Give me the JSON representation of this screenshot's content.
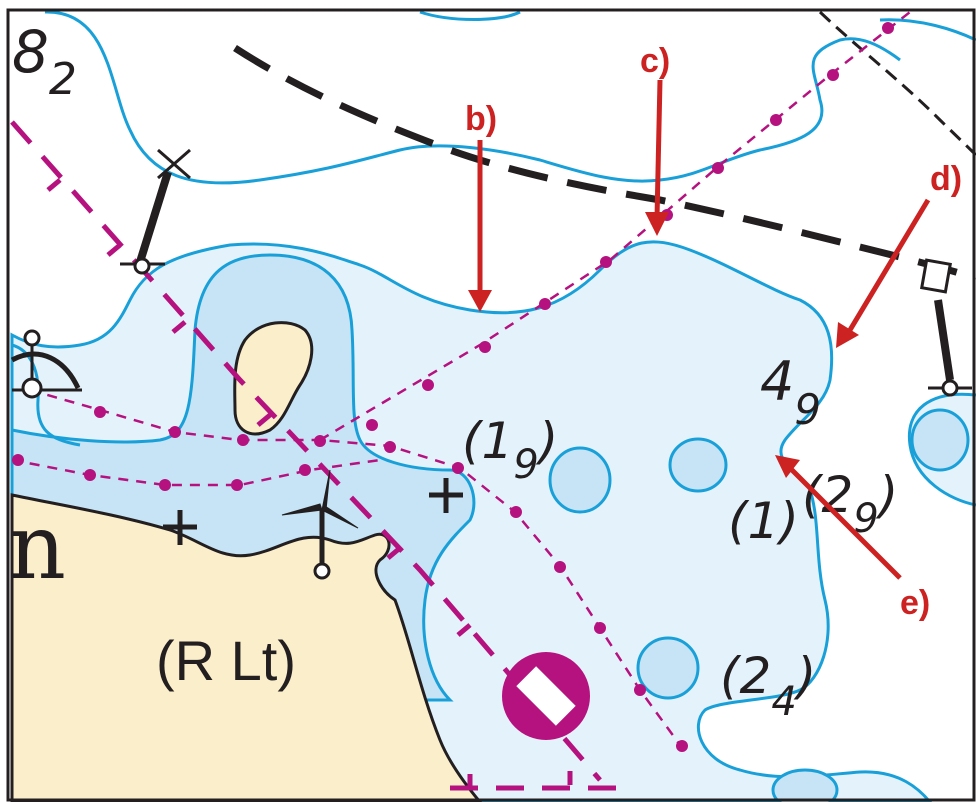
{
  "colors": {
    "deep_water": "#ffffff",
    "shallow_water": "#e4f3fb",
    "very_shallow_water": "#c6e4f5",
    "land": "#fbeecb",
    "contour": "#1aa0d8",
    "magenta": "#b5127f",
    "annotation": "#cc2222",
    "ink": "#231f20"
  },
  "soundings": {
    "s8": {
      "main": "8",
      "sub": "2"
    },
    "s4": {
      "main": "4",
      "sub": "9"
    },
    "s19": {
      "main": "(1",
      "sub": "9",
      "close": ")"
    },
    "s29": {
      "main": "(2",
      "sub": "9",
      "close": ")"
    },
    "s1": {
      "main": "(1)"
    },
    "s24": {
      "main": "(2",
      "sub": "4",
      "close": ")"
    }
  },
  "callouts": {
    "b": "b)",
    "c": "c)",
    "d": "d)",
    "e": "e)"
  },
  "land_label": "(R Lt)",
  "land_letter": "n",
  "icons": [
    "beacon-icon",
    "topmark-x-icon",
    "topmark-square-icon",
    "wind-turbine-icon",
    "radar-station-icon",
    "restricted-area-buoy-icon",
    "danger-cross-icon"
  ]
}
